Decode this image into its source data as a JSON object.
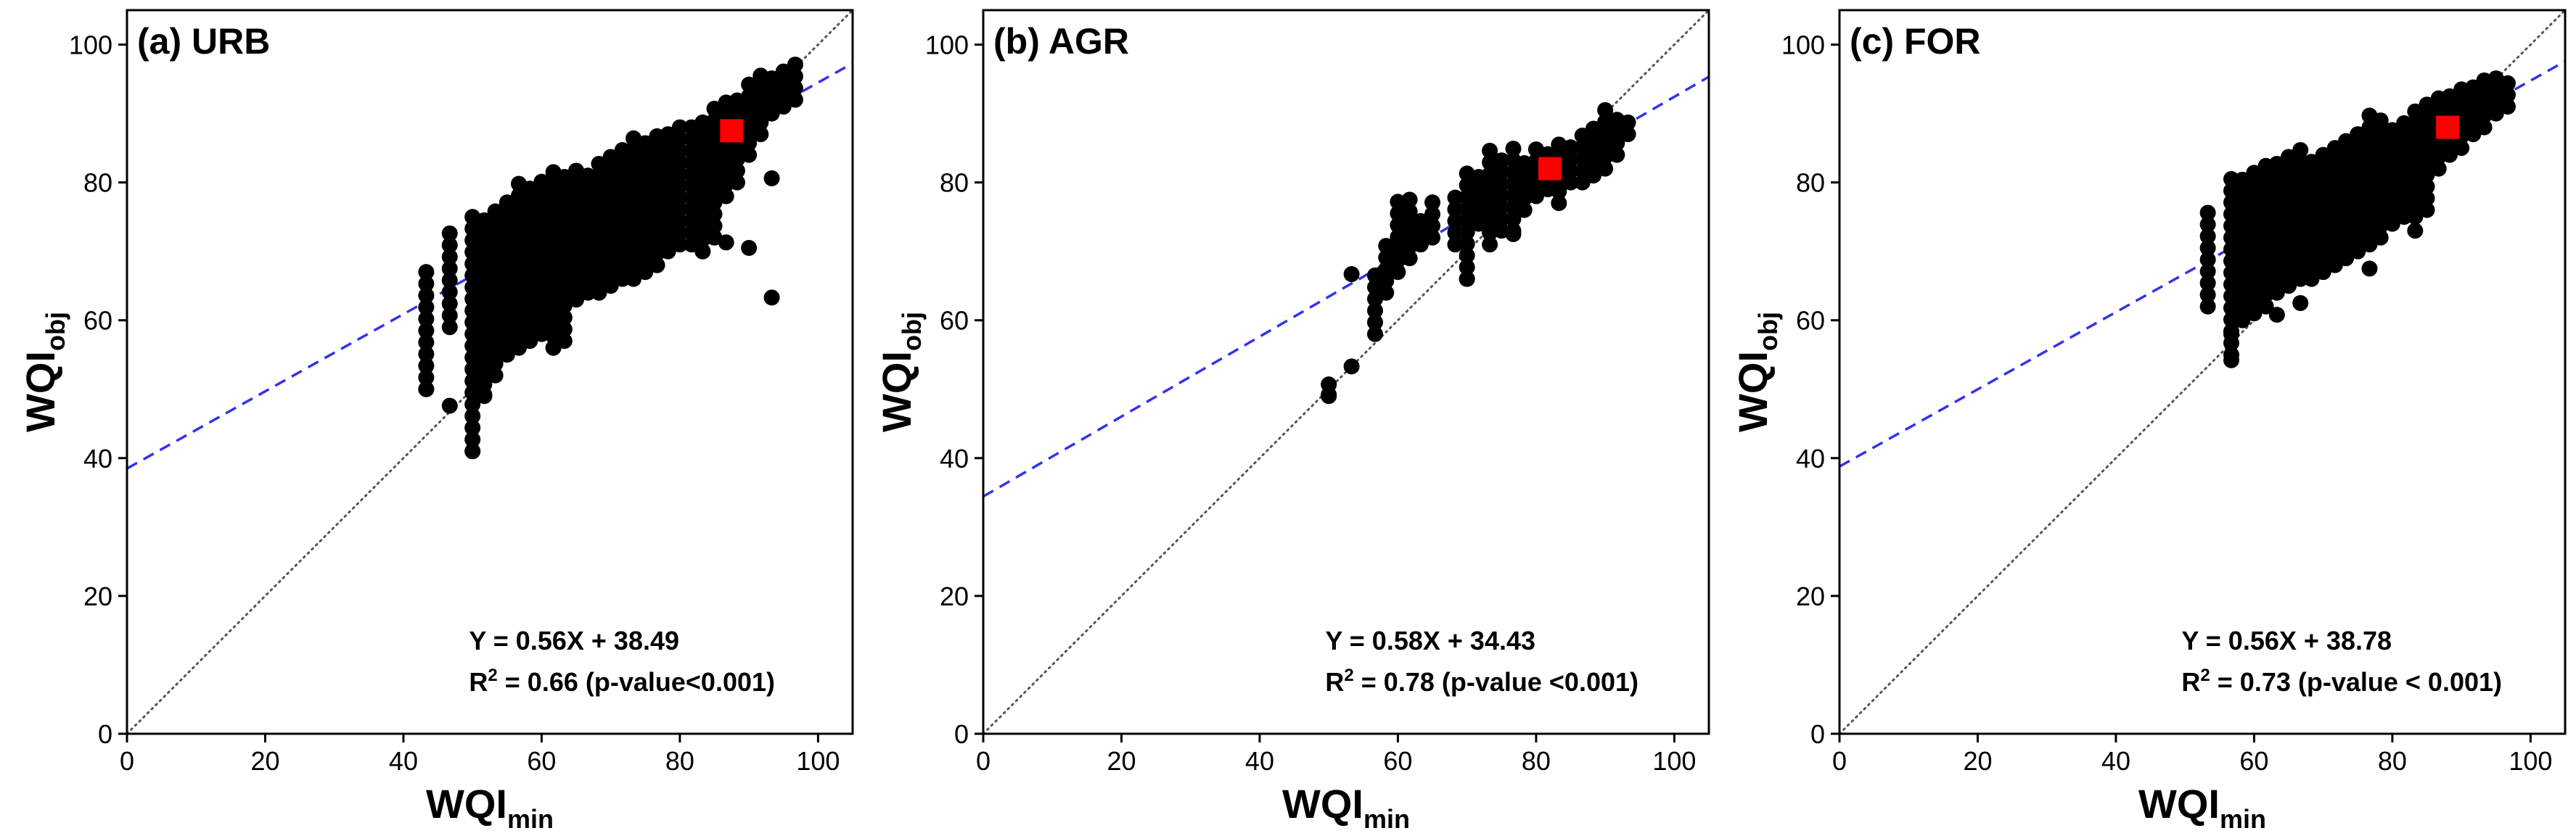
{
  "chart_data": [
    {
      "type": "scatter",
      "title": "(a) URB",
      "xlabel": "WQI",
      "xlabel_sub": "min",
      "ylabel": "WQI",
      "ylabel_sub": "obj",
      "xlim": [
        0,
        105
      ],
      "ylim": [
        0,
        105
      ],
      "xticks": [
        0,
        20,
        40,
        60,
        80,
        100
      ],
      "yticks": [
        0,
        20,
        40,
        60,
        80,
        100
      ],
      "regression": {
        "slope": 0.56,
        "intercept": 38.49,
        "color": "#3333ee"
      },
      "identity_color": "#555555",
      "highlight": {
        "x": 87.5,
        "y": 87.5,
        "color": "#ff0000"
      },
      "equation": "Y = 0.56X + 38.49",
      "r2_prefix": "R",
      "r2_sup": "2",
      "r2_text": " = 0.66 (p-value<0.001)",
      "ranges": [
        [
          43.3,
          50,
          68
        ],
        [
          46.7,
          59,
          73
        ],
        [
          50,
          41,
          76
        ],
        [
          51.7,
          49,
          76
        ],
        [
          53.3,
          52,
          77
        ],
        [
          55,
          55,
          78
        ],
        [
          56.7,
          56,
          81
        ],
        [
          58.3,
          57,
          80
        ],
        [
          60,
          58,
          81
        ],
        [
          61.7,
          56,
          82
        ],
        [
          63.3,
          57,
          82
        ],
        [
          65,
          63,
          83
        ],
        [
          66.7,
          64,
          82
        ],
        [
          68.3,
          64,
          84
        ],
        [
          70,
          65,
          85
        ],
        [
          71.7,
          66,
          85
        ],
        [
          73.3,
          66,
          87
        ],
        [
          75,
          67,
          86
        ],
        [
          76.7,
          68,
          87
        ],
        [
          78.3,
          70,
          88
        ],
        [
          80,
          71,
          88
        ],
        [
          81.7,
          71,
          89
        ],
        [
          83.3,
          70,
          90
        ],
        [
          85,
          72,
          91
        ],
        [
          86.7,
          78,
          92
        ],
        [
          88.3,
          80,
          93
        ],
        [
          90,
          84,
          95
        ],
        [
          91.7,
          87,
          96
        ],
        [
          93.3,
          90,
          96
        ],
        [
          95,
          91,
          97
        ],
        [
          96.7,
          92,
          98
        ]
      ],
      "outliers": [
        [
          50,
          41
        ],
        [
          43.3,
          50
        ],
        [
          46.7,
          47.6
        ],
        [
          51.7,
          49.2
        ],
        [
          90,
          70.5
        ],
        [
          93.3,
          63.3
        ],
        [
          93.3,
          80.6
        ],
        [
          86.7,
          71.3
        ],
        [
          83.3,
          70
        ],
        [
          76.7,
          68
        ]
      ]
    },
    {
      "type": "scatter",
      "title": "(b) AGR",
      "xlabel": "WQI",
      "xlabel_sub": "min",
      "ylabel": "WQI",
      "ylabel_sub": "obj",
      "xlim": [
        0,
        105
      ],
      "ylim": [
        0,
        105
      ],
      "xticks": [
        0,
        20,
        40,
        60,
        80,
        100
      ],
      "yticks": [
        0,
        20,
        40,
        60,
        80,
        100
      ],
      "regression": {
        "slope": 0.58,
        "intercept": 34.43,
        "color": "#3333ee"
      },
      "identity_color": "#555555",
      "highlight": {
        "x": 82,
        "y": 82,
        "color": "#ff0000"
      },
      "equation": "Y = 0.58X + 34.43",
      "r2_prefix": "R",
      "r2_sup": "2",
      "r2_text": " = 0.78 (p-value <0.001)",
      "ranges": [
        [
          50,
          49,
          51
        ],
        [
          56.7,
          58,
          68
        ],
        [
          58.3,
          64,
          71
        ],
        [
          60,
          67,
          78
        ],
        [
          61.7,
          69,
          78
        ],
        [
          63.3,
          71,
          76
        ],
        [
          65,
          72,
          78
        ],
        [
          68.3,
          71,
          79
        ],
        [
          70,
          66,
          82
        ],
        [
          71.7,
          74,
          82
        ],
        [
          73.3,
          71,
          85
        ],
        [
          75,
          73,
          84
        ],
        [
          76.7,
          73,
          85
        ],
        [
          78.3,
          76,
          84
        ],
        [
          80,
          78,
          86
        ],
        [
          81.7,
          79,
          85
        ],
        [
          83.3,
          77,
          86
        ],
        [
          85,
          80,
          86
        ],
        [
          86.7,
          80,
          87
        ],
        [
          88.3,
          81,
          88
        ],
        [
          90,
          82,
          91
        ],
        [
          91.7,
          84,
          90
        ],
        [
          93.3,
          87,
          90
        ]
      ],
      "outliers": [
        [
          53.3,
          53.3
        ],
        [
          53.3,
          66.7
        ],
        [
          50,
          49.2
        ],
        [
          70,
          66
        ],
        [
          76.7,
          72.5
        ]
      ]
    },
    {
      "type": "scatter",
      "title": "(c) FOR",
      "xlabel": "WQI",
      "xlabel_sub": "min",
      "ylabel": "WQI",
      "ylabel_sub": "obj",
      "xlim": [
        0,
        105
      ],
      "ylim": [
        0,
        105
      ],
      "xticks": [
        0,
        20,
        40,
        60,
        80,
        100
      ],
      "yticks": [
        0,
        20,
        40,
        60,
        80,
        100
      ],
      "regression": {
        "slope": 0.56,
        "intercept": 38.78,
        "color": "#3333ee"
      },
      "identity_color": "#555555",
      "highlight": {
        "x": 88,
        "y": 88,
        "color": "#ff0000"
      },
      "equation": "Y = 0.56X + 38.78",
      "r2_prefix": "R",
      "r2_sup": "2",
      "r2_text": " = 0.73 (p-value < 0.001)",
      "ranges": [
        [
          53.3,
          62,
          76
        ],
        [
          56.7,
          55,
          81
        ],
        [
          58.3,
          60,
          82
        ],
        [
          60,
          61,
          82
        ],
        [
          61.7,
          62,
          83
        ],
        [
          63.3,
          64,
          84
        ],
        [
          65,
          65,
          84
        ],
        [
          66.7,
          66,
          85
        ],
        [
          68.3,
          66,
          84
        ],
        [
          70,
          67,
          85
        ],
        [
          71.7,
          68,
          85
        ],
        [
          73.3,
          69,
          87
        ],
        [
          75,
          70,
          88
        ],
        [
          76.7,
          71,
          90
        ],
        [
          78.3,
          72,
          90
        ],
        [
          80,
          74,
          89
        ],
        [
          81.7,
          75,
          90
        ],
        [
          83.3,
          75,
          91
        ],
        [
          85,
          76,
          92
        ],
        [
          86.7,
          82,
          93
        ],
        [
          88.3,
          84,
          93
        ],
        [
          90,
          85,
          94
        ],
        [
          91.7,
          87,
          95
        ],
        [
          93.3,
          88,
          95
        ],
        [
          95,
          90,
          96
        ],
        [
          96.7,
          91,
          95
        ]
      ],
      "outliers": [
        [
          56.7,
          54.2
        ],
        [
          56.7,
          58
        ],
        [
          83.3,
          73
        ],
        [
          66.7,
          62.5
        ],
        [
          76.7,
          67.5
        ],
        [
          63.3,
          60.8
        ]
      ]
    }
  ]
}
